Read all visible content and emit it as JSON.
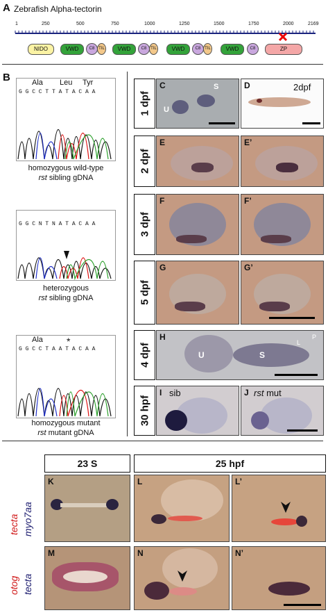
{
  "panelA": {
    "letter": "A",
    "title": "Zebrafish Alpha-tectorin",
    "ticks": [
      "1",
      "250",
      "500",
      "750",
      "1000",
      "1250",
      "1500",
      "1750",
      "2000",
      "2169"
    ],
    "domains": [
      "NIDO",
      "VWD",
      "C8",
      "TIL",
      "VWD",
      "C8",
      "TIL",
      "VWD",
      "C8",
      "TIL",
      "VWD",
      "C8",
      "ZP"
    ],
    "mutation_marker": "red-star"
  },
  "panelB": {
    "letter": "B",
    "wt": {
      "aa": [
        "Ala",
        "Leu",
        "Tyr"
      ],
      "seq": "G G C C T T A T A C A A",
      "caption1": "homozygous wild-type",
      "caption2_italic": "rst",
      "caption2_rest": " sibling gDNA"
    },
    "het": {
      "seq": "G G C N T N A T A C A A",
      "caption1": "heterozygous",
      "caption2_italic": "rst",
      "caption2_rest": " sibling gDNA"
    },
    "mut": {
      "aa": [
        "Ala",
        "*"
      ],
      "seq": "G G C C T A A T A C A A",
      "caption1": "homozygous mutant",
      "caption2_italic": "rst",
      "caption2_rest": " mutant gDNA"
    }
  },
  "rows": {
    "r1": "1 dpf",
    "r2": "2 dpf",
    "r3": "3 dpf",
    "r4": "5 dpf",
    "r5": "4 dpf",
    "r6": "30 hpf"
  },
  "panels": {
    "C": "C",
    "C_U": "U",
    "C_S": "S",
    "D": "D",
    "D_tag": "2dpf",
    "E": "E",
    "Ep": "E’",
    "F": "F",
    "Fp": "F’",
    "G": "G",
    "Gp": "G’",
    "H": "H",
    "H_U": "U",
    "H_S": "S",
    "H_L": "L",
    "H_P": "P",
    "I": "I",
    "I_tag": "sib",
    "J": "J",
    "J_tag_italic": "rst",
    "J_tag_rest": " mut"
  },
  "bottom": {
    "hdr1": "23 S",
    "hdr2": "25 hpf",
    "side1_red": "tecta",
    "side1_blue": "myo7aa",
    "side2_red": "otog",
    "side2_blue": "tecta",
    "K": "K",
    "L": "L",
    "Lp": "L’",
    "M": "M",
    "N": "N",
    "Np": "N’"
  },
  "colors": {
    "red_label": "#d01818",
    "blue_label": "#1a1a6e",
    "bg_tan": "#c9a07a",
    "nido": "#fbf3a4",
    "vwd": "#33a33a",
    "c8": "#c9a7de",
    "til": "#f3c88a",
    "zp": "#f4a7a7"
  }
}
